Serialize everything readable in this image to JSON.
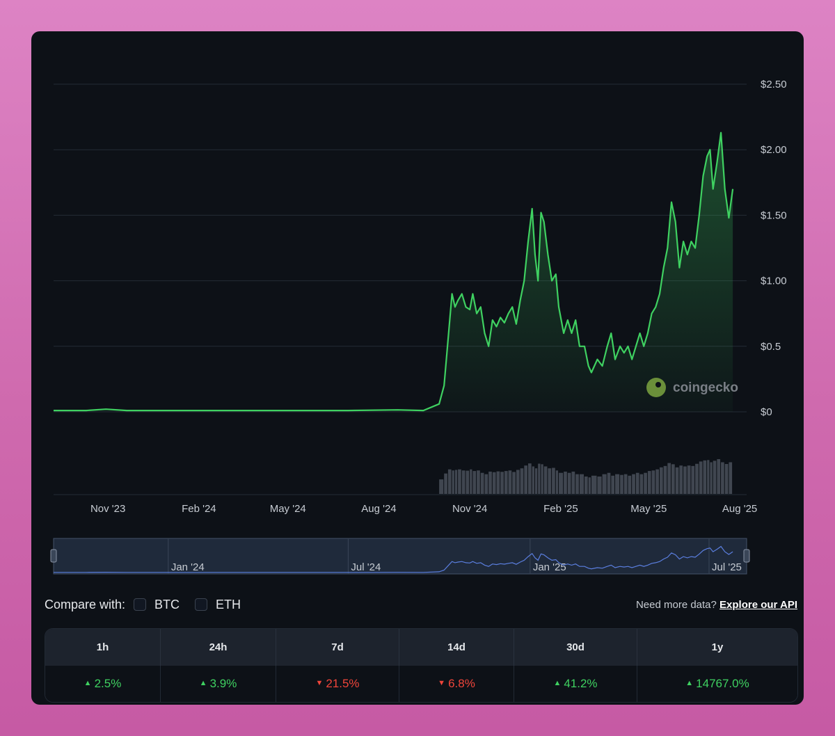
{
  "chart_data": {
    "type": "area",
    "title": "",
    "xlabel": "",
    "ylabel": "",
    "ylim": [
      0,
      2.5
    ],
    "xlim": [
      "2023-09-07",
      "2025-08-08"
    ],
    "y_ticks": [
      {
        "value": 0,
        "label": "$0"
      },
      {
        "value": 0.5,
        "label": "$0.5"
      },
      {
        "value": 1.0,
        "label": "$1.00"
      },
      {
        "value": 1.5,
        "label": "$1.50"
      },
      {
        "value": 2.0,
        "label": "$2.00"
      },
      {
        "value": 2.5,
        "label": "$2.50"
      }
    ],
    "x_ticks": [
      {
        "date": "2023-11-01",
        "label": "Nov '23"
      },
      {
        "date": "2024-02-01",
        "label": "Feb '24"
      },
      {
        "date": "2024-05-01",
        "label": "May '24"
      },
      {
        "date": "2024-08-01",
        "label": "Aug '24"
      },
      {
        "date": "2024-11-01",
        "label": "Nov '24"
      },
      {
        "date": "2025-02-01",
        "label": "Feb '25"
      },
      {
        "date": "2025-05-01",
        "label": "May '25"
      },
      {
        "date": "2025-08-01",
        "label": "Aug '25"
      }
    ],
    "grid": true,
    "series": [
      {
        "color": "#3fd161",
        "points": [
          [
            "2023-09-07",
            0.01
          ],
          [
            "2023-10-10",
            0.01
          ],
          [
            "2023-10-30",
            0.02
          ],
          [
            "2023-11-20",
            0.01
          ],
          [
            "2024-01-01",
            0.01
          ],
          [
            "2024-03-01",
            0.01
          ],
          [
            "2024-05-15",
            0.01
          ],
          [
            "2024-07-01",
            0.01
          ],
          [
            "2024-08-20",
            0.015
          ],
          [
            "2024-09-15",
            0.01
          ],
          [
            "2024-10-01",
            0.06
          ],
          [
            "2024-10-06",
            0.2
          ],
          [
            "2024-10-10",
            0.55
          ],
          [
            "2024-10-14",
            0.9
          ],
          [
            "2024-10-17",
            0.8
          ],
          [
            "2024-10-20",
            0.85
          ],
          [
            "2024-10-24",
            0.9
          ],
          [
            "2024-10-28",
            0.8
          ],
          [
            "2024-11-01",
            0.78
          ],
          [
            "2024-11-04",
            0.9
          ],
          [
            "2024-11-08",
            0.75
          ],
          [
            "2024-11-12",
            0.8
          ],
          [
            "2024-11-16",
            0.6
          ],
          [
            "2024-11-20",
            0.5
          ],
          [
            "2024-11-24",
            0.7
          ],
          [
            "2024-11-28",
            0.65
          ],
          [
            "2024-12-02",
            0.72
          ],
          [
            "2024-12-06",
            0.68
          ],
          [
            "2024-12-10",
            0.75
          ],
          [
            "2024-12-14",
            0.8
          ],
          [
            "2024-12-18",
            0.67
          ],
          [
            "2024-12-22",
            0.85
          ],
          [
            "2024-12-26",
            1.0
          ],
          [
            "2024-12-30",
            1.3
          ],
          [
            "2025-01-03",
            1.55
          ],
          [
            "2025-01-06",
            1.2
          ],
          [
            "2025-01-09",
            1.0
          ],
          [
            "2025-01-12",
            1.52
          ],
          [
            "2025-01-15",
            1.45
          ],
          [
            "2025-01-19",
            1.2
          ],
          [
            "2025-01-23",
            1.0
          ],
          [
            "2025-01-27",
            1.05
          ],
          [
            "2025-01-30",
            0.8
          ],
          [
            "2025-02-04",
            0.6
          ],
          [
            "2025-02-08",
            0.7
          ],
          [
            "2025-02-12",
            0.6
          ],
          [
            "2025-02-16",
            0.7
          ],
          [
            "2025-02-20",
            0.5
          ],
          [
            "2025-02-25",
            0.5
          ],
          [
            "2025-03-01",
            0.35
          ],
          [
            "2025-03-04",
            0.3
          ],
          [
            "2025-03-10",
            0.4
          ],
          [
            "2025-03-15",
            0.35
          ],
          [
            "2025-03-20",
            0.5
          ],
          [
            "2025-03-24",
            0.6
          ],
          [
            "2025-03-28",
            0.4
          ],
          [
            "2025-04-02",
            0.5
          ],
          [
            "2025-04-06",
            0.45
          ],
          [
            "2025-04-10",
            0.5
          ],
          [
            "2025-04-14",
            0.4
          ],
          [
            "2025-04-18",
            0.5
          ],
          [
            "2025-04-22",
            0.6
          ],
          [
            "2025-04-26",
            0.5
          ],
          [
            "2025-04-30",
            0.6
          ],
          [
            "2025-05-04",
            0.75
          ],
          [
            "2025-05-08",
            0.8
          ],
          [
            "2025-05-12",
            0.9
          ],
          [
            "2025-05-16",
            1.1
          ],
          [
            "2025-05-20",
            1.25
          ],
          [
            "2025-05-24",
            1.6
          ],
          [
            "2025-05-28",
            1.45
          ],
          [
            "2025-06-01",
            1.1
          ],
          [
            "2025-06-05",
            1.3
          ],
          [
            "2025-06-09",
            1.2
          ],
          [
            "2025-06-13",
            1.3
          ],
          [
            "2025-06-17",
            1.25
          ],
          [
            "2025-06-21",
            1.5
          ],
          [
            "2025-06-25",
            1.8
          ],
          [
            "2025-06-29",
            1.95
          ],
          [
            "2025-07-02",
            2.0
          ],
          [
            "2025-07-05",
            1.7
          ],
          [
            "2025-07-09",
            1.9
          ],
          [
            "2025-07-13",
            2.13
          ],
          [
            "2025-07-17",
            1.7
          ],
          [
            "2025-07-21",
            1.48
          ],
          [
            "2025-07-25",
            1.7
          ]
        ]
      }
    ],
    "volume_color": "#6b7280",
    "annotations": [
      "coingecko"
    ]
  },
  "navigator": {
    "labels": [
      "Jan '24",
      "Jul '24",
      "Jan '25",
      "Jul '25"
    ]
  },
  "compare": {
    "label": "Compare with:",
    "options": [
      "BTC",
      "ETH"
    ],
    "api_prompt": "Need more data?",
    "api_link": "Explore our API"
  },
  "performance": {
    "headers": [
      "1h",
      "24h",
      "7d",
      "14d",
      "30d",
      "1y"
    ],
    "values": [
      {
        "text": "2.5%",
        "dir": "up"
      },
      {
        "text": "3.9%",
        "dir": "up"
      },
      {
        "text": "21.5%",
        "dir": "down"
      },
      {
        "text": "6.8%",
        "dir": "down"
      },
      {
        "text": "41.2%",
        "dir": "up"
      },
      {
        "text": "14767.0%",
        "dir": "up"
      }
    ]
  },
  "colors": {
    "up": "#3fd161",
    "down": "#f0453a",
    "background": "#0d1117"
  }
}
